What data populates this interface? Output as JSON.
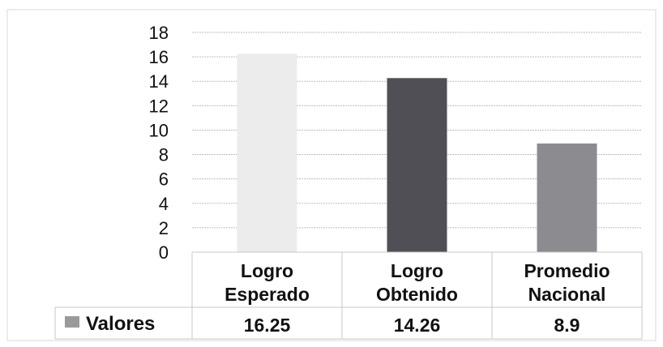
{
  "chart_data": {
    "type": "bar",
    "categories": [
      [
        "Logro",
        "Esperado"
      ],
      [
        "Logro",
        "Obtenido"
      ],
      [
        "Promedio",
        "Nacional"
      ]
    ],
    "series": [
      {
        "name": "Valores",
        "values": [
          16.25,
          14.26,
          8.9
        ],
        "value_labels": [
          "16.25",
          "14.26",
          "8.9"
        ],
        "colors": [
          "#ececec",
          "#4f4f55",
          "#8c8c90"
        ]
      }
    ],
    "y_ticks": [
      "0",
      "2",
      "4",
      "6",
      "8",
      "10",
      "12",
      "14",
      "16",
      "18"
    ],
    "ylim": [
      0,
      18
    ],
    "grid": true,
    "legend": "data table below chart",
    "legend_key_color": "#9a9a9a",
    "title": "",
    "xlabel": "",
    "ylabel": ""
  }
}
